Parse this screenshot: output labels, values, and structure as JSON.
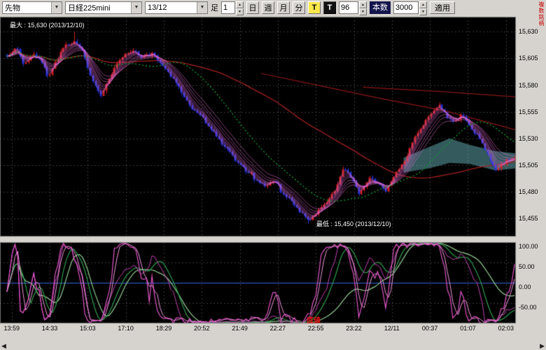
{
  "toolbar": {
    "instrument_type": "先物",
    "instrument": "日経225mini",
    "contract_month": "13/12",
    "bar_label": "足",
    "interval_value": "1",
    "period_day": "日",
    "period_week": "週",
    "period_month": "月",
    "period_minute": "分",
    "tick_active": "T",
    "tick_label": "T",
    "bars_value": "96",
    "count_label": "本数",
    "count_value": "3000",
    "apply_label": "適用",
    "multi_symbol_label": "複数銘柄"
  },
  "scrollbar": {
    "left_arrow": "◀",
    "right_arrow": "▶"
  },
  "chart_data": {
    "type": "candlestick",
    "instrument": "日経225mini 13/12 1分足",
    "y_axis": {
      "min": 15438,
      "max": 15644,
      "ticks": [
        {
          "label": "15,630",
          "value": 15630
        },
        {
          "label": "15,605",
          "value": 15605
        },
        {
          "label": "15,580",
          "value": 15580
        },
        {
          "label": "15,555",
          "value": 15555
        },
        {
          "label": "15,530",
          "value": 15530
        },
        {
          "label": "15,505",
          "value": 15505
        },
        {
          "label": "15,480",
          "value": 15480
        },
        {
          "label": "15,455",
          "value": 15455
        }
      ]
    },
    "x_axis": {
      "labels": [
        "13:59",
        "14:33",
        "15:03",
        "17:10",
        "18:29",
        "20:52",
        "21:49",
        "22:27",
        "22:55",
        "23:22",
        "12/11",
        "00:37",
        "01:07",
        "02:03"
      ]
    },
    "annotations": {
      "max_label": "最大 : 15,630 (2013/12/10)",
      "min_label": "最低 : 15,450 (2013/12/10)",
      "bottom_label": "底値"
    },
    "extremes": {
      "max_frac": 0.133,
      "max_price": 15630,
      "min_frac": 0.595,
      "min_price": 15450
    },
    "candle_count": 190,
    "price_anchors": [
      [
        0.0,
        15608
      ],
      [
        0.019,
        15615
      ],
      [
        0.033,
        15598
      ],
      [
        0.051,
        15610
      ],
      [
        0.069,
        15600
      ],
      [
        0.082,
        15588
      ],
      [
        0.099,
        15605
      ],
      [
        0.119,
        15618
      ],
      [
        0.133,
        15622
      ],
      [
        0.151,
        15610
      ],
      [
        0.167,
        15585
      ],
      [
        0.184,
        15570
      ],
      [
        0.198,
        15582
      ],
      [
        0.215,
        15600
      ],
      [
        0.233,
        15608
      ],
      [
        0.25,
        15612
      ],
      [
        0.27,
        15605
      ],
      [
        0.288,
        15610
      ],
      [
        0.307,
        15598
      ],
      [
        0.325,
        15588
      ],
      [
        0.343,
        15575
      ],
      [
        0.359,
        15562
      ],
      [
        0.377,
        15553
      ],
      [
        0.394,
        15543
      ],
      [
        0.412,
        15532
      ],
      [
        0.428,
        15522
      ],
      [
        0.449,
        15510
      ],
      [
        0.469,
        15500
      ],
      [
        0.49,
        15492
      ],
      [
        0.508,
        15486
      ],
      [
        0.527,
        15490
      ],
      [
        0.545,
        15478
      ],
      [
        0.565,
        15468
      ],
      [
        0.582,
        15458
      ],
      [
        0.595,
        15452
      ],
      [
        0.609,
        15460
      ],
      [
        0.627,
        15470
      ],
      [
        0.645,
        15480
      ],
      [
        0.664,
        15503
      ],
      [
        0.682,
        15490
      ],
      [
        0.695,
        15478
      ],
      [
        0.713,
        15492
      ],
      [
        0.73,
        15488
      ],
      [
        0.746,
        15482
      ],
      [
        0.764,
        15495
      ],
      [
        0.782,
        15508
      ],
      [
        0.798,
        15525
      ],
      [
        0.815,
        15540
      ],
      [
        0.833,
        15552
      ],
      [
        0.85,
        15562
      ],
      [
        0.867,
        15550
      ],
      [
        0.883,
        15545
      ],
      [
        0.897,
        15552
      ],
      [
        0.915,
        15540
      ],
      [
        0.933,
        15528
      ],
      [
        0.949,
        15512
      ],
      [
        0.963,
        15500
      ],
      [
        0.979,
        15508
      ],
      [
        1.0,
        15512
      ]
    ],
    "overlays": {
      "ema_fan_periods": [
        2,
        3,
        4,
        5,
        6,
        8,
        10,
        13
      ],
      "green_sma_period": 26,
      "red_sma_period": 80,
      "red_long_lines": [
        [
          [
            0.5,
            15591
          ],
          [
            0.62,
            15579
          ],
          [
            0.74,
            15567
          ],
          [
            0.86,
            15556
          ],
          [
            1.0,
            15538
          ]
        ],
        [
          [
            0.7,
            15578
          ],
          [
            0.85,
            15574
          ],
          [
            1.0,
            15569
          ]
        ]
      ],
      "cyan_band": {
        "top": [
          [
            0.78,
            15512
          ],
          [
            0.83,
            15522
          ],
          [
            0.87,
            15530
          ],
          [
            0.91,
            15524
          ],
          [
            0.96,
            15518
          ],
          [
            1.0,
            15516
          ]
        ],
        "bottom": [
          [
            0.78,
            15498
          ],
          [
            0.83,
            15502
          ],
          [
            0.87,
            15507
          ],
          [
            0.91,
            15506
          ],
          [
            0.96,
            15500
          ],
          [
            1.0,
            15502
          ]
        ]
      }
    },
    "indicator": {
      "range": [
        -100,
        100
      ],
      "ticks": [
        {
          "label": "100.00",
          "value": 100
        },
        {
          "label": "50.00",
          "value": 50
        },
        {
          "label": "0.00",
          "value": 0
        },
        {
          "label": "-50.00",
          "value": -50
        }
      ],
      "zero_line": 0,
      "stoch_periods": {
        "fast": 10,
        "fast_smooth": 3,
        "mid": 28,
        "mid_smooth": 5,
        "slow": 55,
        "slow_smooth": 8
      }
    },
    "colors": {
      "plot_bg": "#000000",
      "window_bg": "#d6d3ce",
      "grid": "#3a3a3a",
      "border": "#6f6f6f",
      "up": "#cc2020",
      "down": "#2433d6",
      "ema_fan": "#e06ad0",
      "green_ma": "#0f9a2c",
      "red_ma": "#a42222",
      "red_long": "#8b1717",
      "cyan_band": "rgba(130,225,235,0.40)",
      "ind_fast": "#e356c8",
      "ind_fast_smooth": "#f49ae0",
      "ind_mid": "#c243b3",
      "ind_mid_smooth": "#2f9e4f",
      "ind_slow": "#93d193",
      "ind_zero": "#3b62e0",
      "annotation": "#ffffff",
      "annotation_red": "#dd1111",
      "axis_text": "#000000"
    }
  }
}
